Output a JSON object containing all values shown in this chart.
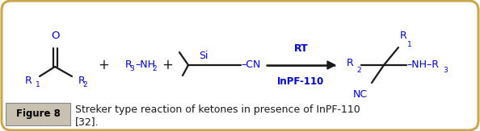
{
  "fig_width": 5.94,
  "fig_height": 1.63,
  "dpi": 100,
  "bg_color": "#ffffff",
  "border_color": "#c8a84b",
  "figure_label": "Figure 8",
  "figure_label_bg": "#c8c0b0",
  "caption_line1": "Streker type reaction of ketones in presence of InPF-110",
  "caption_line2": "[32].",
  "text_color": "#1a1a1a",
  "chem_color": "#1a1a1a",
  "chem_blue": "#0000cc",
  "fs_main": 9.0,
  "fs_sub": 6.5,
  "fs_caption": 9.0
}
